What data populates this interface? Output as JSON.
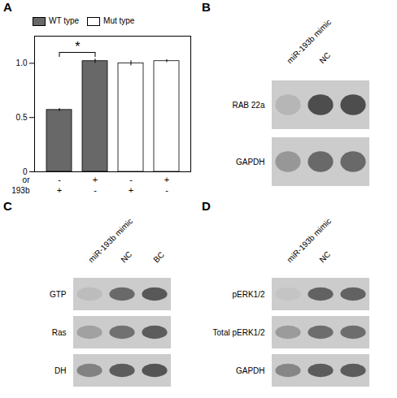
{
  "chart_data": [
    {
      "type": "bar",
      "title": "A",
      "series": [
        {
          "name": "WT type",
          "color": "#686868",
          "values": [
            0.57,
            1.02,
            null,
            null
          ],
          "errors": [
            0.012,
            0.018,
            null,
            null
          ]
        },
        {
          "name": "Mut type",
          "color": "#ffffff",
          "values": [
            null,
            null,
            1.0,
            1.02
          ],
          "errors": [
            null,
            null,
            0.022,
            0.012
          ]
        }
      ],
      "x_label_rows": [
        {
          "label": "or",
          "values": [
            "-",
            "+",
            "-",
            "+"
          ]
        },
        {
          "label": "193b",
          "values": [
            "+",
            "-",
            "+",
            "-"
          ]
        }
      ],
      "ylim": [
        0,
        1.25
      ],
      "yticks": [
        0,
        0.5,
        {
          "value": 1.0,
          "label": "1.0"
        }
      ],
      "legend": "upper left",
      "grid": false,
      "tick_labels": "y",
      "annotations": [
        {
          "text": "*",
          "from": 0,
          "to": 1,
          "y": 1.1
        }
      ]
    },
    {
      "type": "heatmap",
      "title": "B",
      "x": [
        "miR-193b mimic",
        "NC",
        null
      ],
      "y": [
        "RAB 22a",
        "GAPDH"
      ],
      "cells": [
        [
          0.35,
          0.85,
          0.85
        ],
        [
          0.5,
          0.72,
          0.72
        ]
      ]
    },
    {
      "type": "heatmap",
      "title": "C",
      "x": [
        "miR-193b mimic",
        "NC",
        "BC"
      ],
      "y": [
        "GTP",
        "Ras",
        "DH"
      ],
      "cells": [
        [
          0.32,
          0.72,
          0.8
        ],
        [
          0.45,
          0.68,
          0.78
        ],
        [
          0.6,
          0.78,
          0.82
        ]
      ]
    },
    {
      "type": "heatmap",
      "title": "D",
      "x": [
        "miR-193b mimic",
        "NC",
        null
      ],
      "y": [
        "pERK1/2",
        "Total pERK1/2",
        "GAPDH"
      ],
      "cells": [
        [
          0.28,
          0.75,
          0.75
        ],
        [
          0.48,
          0.7,
          0.7
        ],
        [
          0.58,
          0.78,
          0.78
        ]
      ]
    }
  ]
}
